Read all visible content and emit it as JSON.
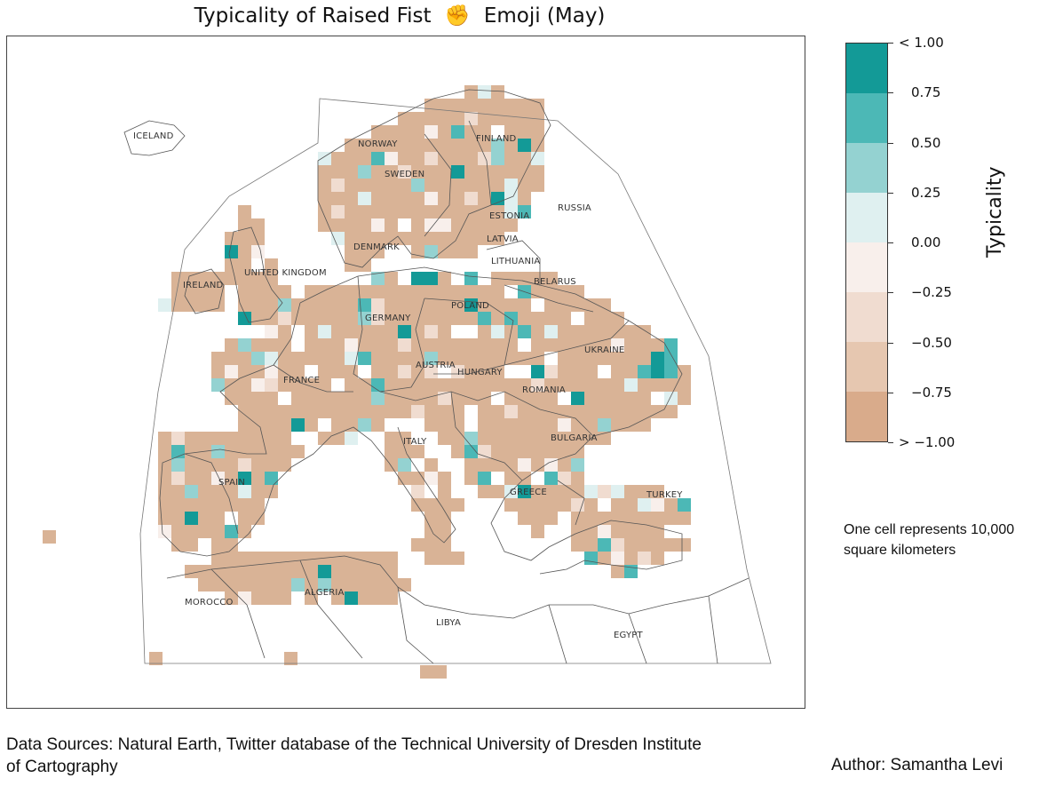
{
  "title": {
    "prefix": "Typicality of Raised Fist",
    "emoji": "✊",
    "suffix": "Emoji (May)"
  },
  "map": {
    "country_labels": [
      "ICELAND",
      "NORWAY",
      "FINLAND",
      "SWEDEN",
      "RUSSIA",
      "ESTONIA",
      "LATVIA",
      "DENMARK",
      "LITHUANIA",
      "UNITED KINGDOM",
      "IRELAND",
      "BELARUS",
      "POLAND",
      "GERMANY",
      "UKRAINE",
      "AUSTRIA",
      "HUNGARY",
      "FRANCE",
      "ROMANIA",
      "BULGARIA",
      "ITALY",
      "SPAIN",
      "GREECE",
      "TURKEY",
      "MOROCCO",
      "ALGERIA",
      "LIBYA",
      "EGYPT"
    ],
    "colors": {
      "base": "#d9b396",
      "positive_high": "#139a97",
      "positive_mid": "#4cb8b6",
      "positive_low": "#94d2d1",
      "neutral_pos": "#dff0f0",
      "neutral_neg": "#f8efeb",
      "negative_low": "#f0dcd0",
      "negative_mid": "#e6c7b0",
      "negative_high": "#d9ab8b",
      "border": "#555555"
    }
  },
  "legend": {
    "title": "Typicality",
    "ticks": [
      "< 1.00",
      "0.75",
      "0.50",
      "0.25",
      "0.00",
      "−0.25",
      "−0.50",
      "−0.75",
      "> −1.00"
    ],
    "colors": [
      "#139a97",
      "#4cb8b6",
      "#94d2d1",
      "#dff0f0",
      "#f8efeb",
      "#f0dcd0",
      "#e6c7b0",
      "#d9ab8b"
    ]
  },
  "note": "One cell represents 10,000 square kilometers",
  "sources": "Data Sources: Natural Earth, Twitter database of the Technical University of Dresden Institute of Cartography",
  "author": "Author: Samantha Levi"
}
